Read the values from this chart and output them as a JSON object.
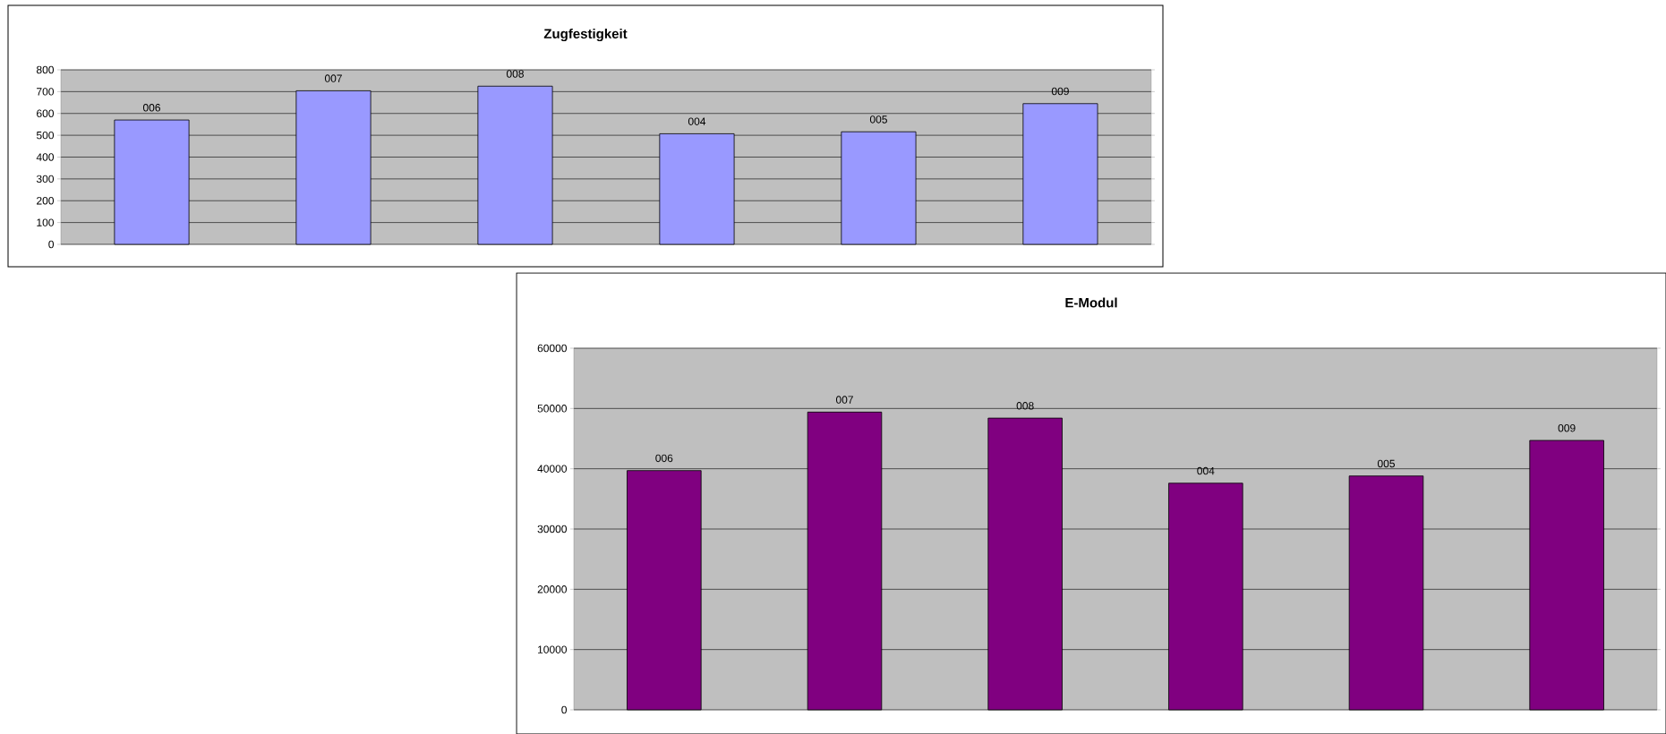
{
  "chart_data": [
    {
      "type": "bar",
      "title": "Zugfestigkeit",
      "categories": [
        "006",
        "007",
        "008",
        "004",
        "005",
        "009"
      ],
      "values": [
        570,
        704,
        725,
        507,
        516,
        645
      ],
      "color": "#9999ff",
      "ylim": [
        0,
        800
      ],
      "yticks": [
        0,
        100,
        200,
        300,
        400,
        500,
        600,
        700,
        800
      ],
      "grid": "y"
    },
    {
      "type": "bar",
      "title": "E-Modul",
      "categories": [
        "006",
        "007",
        "008",
        "004",
        "005",
        "009"
      ],
      "values": [
        39700,
        49400,
        48400,
        37600,
        38800,
        44700
      ],
      "color": "#800080",
      "ylim": [
        0,
        60000
      ],
      "yticks": [
        0,
        10000,
        20000,
        30000,
        40000,
        50000,
        60000
      ],
      "grid": "y"
    }
  ]
}
